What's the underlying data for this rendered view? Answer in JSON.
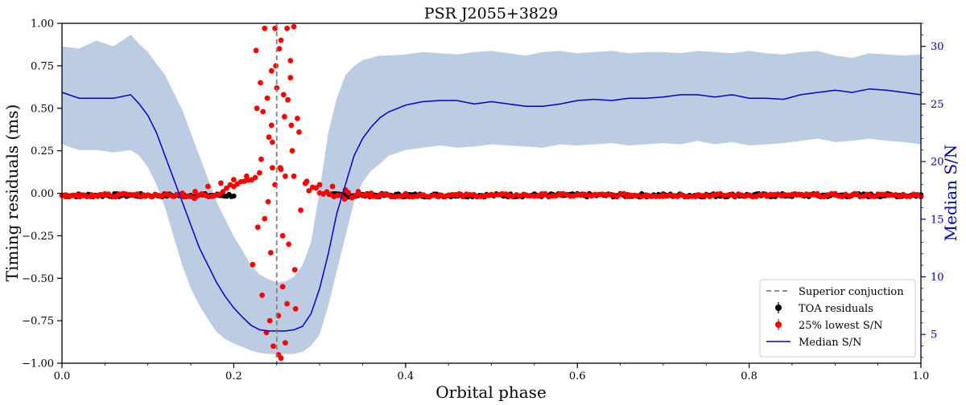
{
  "chart_data": {
    "type": "scatter",
    "title": "PSR J2055+3829",
    "xlabel": "Orbital phase",
    "ylabel": "Timing residuals (ms)",
    "ylabel_right": "Median S/N",
    "xlim": [
      0.0,
      1.0
    ],
    "ylim": [
      -1.0,
      1.0
    ],
    "ylim_right": [
      2.5,
      32.0
    ],
    "x_ticks": [
      0.0,
      0.2,
      0.4,
      0.6,
      0.8,
      1.0
    ],
    "x_tick_labels": [
      "0.0",
      "0.2",
      "0.4",
      "0.6",
      "0.8",
      "1.0"
    ],
    "y_ticks": [
      1.0,
      0.75,
      0.5,
      0.25,
      0.0,
      -0.25,
      -0.5,
      -0.75,
      -1.0
    ],
    "y_tick_labels": [
      "1.00",
      "0.75",
      "0.50",
      "0.25",
      "0.00",
      "−0.25",
      "−0.50",
      "−0.75",
      "−1.00"
    ],
    "y_right_ticks": [
      5,
      10,
      15,
      20,
      25,
      30
    ],
    "y_right_tick_labels": [
      "5",
      "10",
      "15",
      "20",
      "25",
      "30"
    ],
    "superior_conjunction_phase": 0.25,
    "colors": {
      "toa": "#000000",
      "low_sn": "#ff0000",
      "median_line": "#0000cc",
      "band": "#b0c4de",
      "conjunction": "#808080",
      "right_axis": "#0000aa"
    },
    "legend": {
      "position": "lower-right",
      "entries": [
        "Superior conjuction",
        "TOA residuals",
        "25% lowest S/N",
        "Median S/N"
      ]
    },
    "series": [
      {
        "name": "Median S/N",
        "axis": "right",
        "phase": [
          0.0,
          0.02,
          0.04,
          0.06,
          0.08,
          0.09,
          0.1,
          0.11,
          0.12,
          0.13,
          0.14,
          0.15,
          0.16,
          0.17,
          0.18,
          0.19,
          0.2,
          0.21,
          0.22,
          0.23,
          0.24,
          0.25,
          0.26,
          0.27,
          0.28,
          0.29,
          0.3,
          0.31,
          0.32,
          0.33,
          0.34,
          0.35,
          0.36,
          0.37,
          0.38,
          0.4,
          0.42,
          0.44,
          0.46,
          0.48,
          0.5,
          0.52,
          0.54,
          0.56,
          0.58,
          0.6,
          0.62,
          0.64,
          0.66,
          0.68,
          0.7,
          0.72,
          0.74,
          0.76,
          0.78,
          0.8,
          0.82,
          0.84,
          0.86,
          0.88,
          0.9,
          0.92,
          0.94,
          0.96,
          0.98,
          1.0
        ],
        "median": [
          26.0,
          25.5,
          25.5,
          25.5,
          25.8,
          25.0,
          24.0,
          22.5,
          20.5,
          18.5,
          16.5,
          14.5,
          12.5,
          11.0,
          9.5,
          8.3,
          7.3,
          6.5,
          5.8,
          5.4,
          5.3,
          5.3,
          5.3,
          5.4,
          5.7,
          6.8,
          9.0,
          12.0,
          15.5,
          18.0,
          20.5,
          22.0,
          23.0,
          23.8,
          24.3,
          24.9,
          25.2,
          25.3,
          25.3,
          25.0,
          25.2,
          25.0,
          24.8,
          24.8,
          25.0,
          25.3,
          25.4,
          25.3,
          25.5,
          25.5,
          25.6,
          25.8,
          25.8,
          25.6,
          25.8,
          25.5,
          25.5,
          25.4,
          25.8,
          26.0,
          26.2,
          26.0,
          26.3,
          26.2,
          26.0,
          25.8
        ],
        "band_low": [
          21.5,
          21.0,
          21.0,
          20.8,
          21.0,
          20.5,
          19.5,
          18.0,
          16.0,
          13.5,
          11.0,
          9.0,
          7.5,
          6.3,
          5.2,
          4.6,
          4.2,
          3.9,
          3.6,
          3.4,
          3.3,
          3.3,
          3.3,
          3.3,
          3.5,
          4.0,
          5.0,
          7.5,
          10.5,
          13.5,
          16.5,
          18.2,
          19.2,
          19.8,
          20.5,
          21.0,
          21.2,
          21.4,
          21.2,
          21.3,
          21.5,
          21.4,
          21.3,
          21.2,
          21.5,
          21.4,
          21.5,
          21.6,
          21.4,
          21.5,
          21.6,
          21.5,
          21.8,
          21.5,
          21.7,
          21.4,
          21.5,
          21.6,
          21.8,
          22.0,
          21.7,
          21.8,
          22.0,
          21.8,
          21.7,
          21.5
        ],
        "band_high": [
          30.0,
          29.8,
          30.5,
          30.0,
          31.0,
          30.2,
          29.5,
          28.5,
          27.5,
          26.0,
          24.5,
          22.5,
          20.5,
          18.5,
          16.5,
          15.0,
          13.5,
          12.3,
          11.0,
          10.2,
          9.8,
          9.5,
          9.6,
          10.0,
          11.0,
          13.0,
          17.5,
          22.5,
          25.5,
          27.5,
          28.3,
          28.8,
          29.0,
          29.2,
          29.2,
          29.3,
          29.5,
          29.4,
          29.3,
          29.5,
          29.6,
          29.4,
          29.2,
          29.5,
          29.6,
          29.4,
          29.5,
          29.6,
          29.4,
          29.5,
          29.5,
          29.4,
          29.6,
          29.5,
          29.4,
          29.6,
          29.4,
          29.3,
          29.5,
          29.6,
          29.2,
          29.0,
          29.4,
          29.3,
          29.2,
          29.3
        ]
      },
      {
        "name": "TOA residuals",
        "axis": "left",
        "description": "Dense TOA residual band near 0 ms across all phases",
        "phase_range": [
          0.0,
          1.0
        ],
        "residual_ms": 0.0,
        "scatter_ms": 0.01
      },
      {
        "name": "25% lowest S/N",
        "axis": "left",
        "baseline_points": {
          "phase": [
            0.005,
            0.02,
            0.035,
            0.05,
            0.065,
            0.08,
            0.095,
            0.11,
            0.125,
            0.14,
            0.155,
            0.17,
            0.185,
            0.2,
            0.215,
            0.23,
            0.245,
            0.255,
            0.27,
            0.285,
            0.3,
            0.315,
            0.33,
            0.345,
            0.36,
            0.38,
            0.4,
            0.42,
            0.44,
            0.46,
            0.48,
            0.5,
            0.52,
            0.54,
            0.56,
            0.58,
            0.6,
            0.62,
            0.64,
            0.66,
            0.68,
            0.7,
            0.72,
            0.74,
            0.76,
            0.78,
            0.8,
            0.82,
            0.84,
            0.86,
            0.88,
            0.9,
            0.92,
            0.94,
            0.96,
            0.98,
            0.995
          ],
          "residual_ms": [
            -0.01,
            -0.01,
            -0.01,
            -0.01,
            -0.01,
            -0.01,
            -0.01,
            -0.01,
            -0.01,
            0.0,
            0.01,
            0.04,
            0.06,
            0.08,
            0.1,
            0.12,
            0.15,
            0.14,
            0.1,
            0.07,
            0.05,
            0.04,
            0.02,
            0.01,
            0.0,
            -0.01,
            -0.01,
            -0.01,
            -0.01,
            -0.01,
            -0.01,
            -0.01,
            -0.01,
            -0.01,
            -0.01,
            -0.01,
            -0.01,
            -0.01,
            -0.01,
            -0.01,
            -0.01,
            -0.01,
            -0.01,
            -0.01,
            -0.01,
            -0.01,
            -0.01,
            -0.01,
            -0.01,
            -0.01,
            -0.01,
            -0.01,
            -0.01,
            -0.01,
            -0.01,
            -0.01,
            -0.01
          ]
        },
        "eclipse_outliers": {
          "phase": [
            0.222,
            0.226,
            0.228,
            0.231,
            0.233,
            0.234,
            0.236,
            0.238,
            0.239,
            0.241,
            0.242,
            0.244,
            0.246,
            0.248,
            0.25,
            0.252,
            0.254,
            0.255,
            0.257,
            0.259,
            0.26,
            0.262,
            0.264,
            0.266,
            0.268,
            0.27,
            0.272,
            0.274,
            0.276,
            0.278,
            0.24,
            0.245,
            0.255,
            0.263,
            0.267,
            0.253,
            0.243,
            0.258,
            0.232,
            0.227,
            0.236,
            0.248,
            0.262,
            0.266,
            0.271,
            0.249,
            0.257,
            0.244,
            0.26,
            0.252
          ],
          "residual_ms": [
            -0.42,
            0.84,
            -0.2,
            0.65,
            -0.6,
            0.48,
            0.97,
            -0.82,
            0.56,
            0.33,
            -0.75,
            0.72,
            -0.9,
            0.97,
            0.62,
            -0.95,
            0.15,
            0.9,
            -0.55,
            0.45,
            -0.88,
            0.97,
            -0.3,
            0.78,
            0.25,
            0.98,
            -0.68,
            0.44,
            0.36,
            -0.1,
            -0.05,
            0.3,
            -0.97,
            0.55,
            0.4,
            0.85,
            -0.35,
            0.58,
            0.2,
            0.5,
            -0.15,
            0.05,
            -0.65,
            0.68,
            -0.45,
            0.75,
            -0.25,
            0.4,
            0.1,
            -0.72
          ]
        }
      }
    ]
  }
}
